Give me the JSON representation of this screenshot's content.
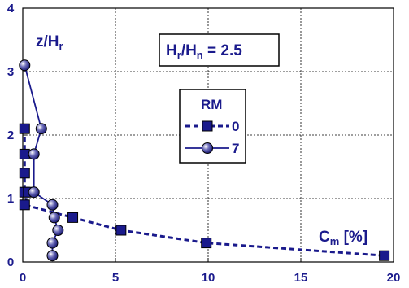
{
  "chart_data": {
    "type": "line",
    "xlabel": {
      "main": "C",
      "sub": "m",
      "rest": " [%]"
    },
    "ylabel": {
      "main": "z/H",
      "sub": "r"
    },
    "xlim": [
      0,
      20
    ],
    "ylim": [
      0,
      4
    ],
    "x_ticks": [
      "0",
      "5",
      "10",
      "15",
      "20"
    ],
    "y_ticks": [
      "0",
      "1",
      "2",
      "3",
      "4"
    ],
    "grid": true,
    "annotation": {
      "a": "H",
      "a_sub": "r",
      "slash": "/H",
      "b_sub": "n",
      "rest": " = 2.5"
    },
    "legend": {
      "title": "RM",
      "placement": "center-right"
    },
    "series": [
      {
        "name": "0",
        "marker": "square",
        "line": "dashed",
        "color": "#1a1a8c",
        "x": [
          0.1,
          0.1,
          0.1,
          0.1,
          0.3,
          0.1,
          2.7,
          5.3,
          9.9,
          19.5
        ],
        "y": [
          2.1,
          1.7,
          1.4,
          1.1,
          1.1,
          0.9,
          0.7,
          0.5,
          0.3,
          0.1
        ]
      },
      {
        "name": "7",
        "marker": "sphere",
        "line": "solid",
        "color": "#1a1a8c",
        "x": [
          0.1,
          1.0,
          0.6,
          0.6,
          1.6,
          1.7,
          1.9,
          1.6,
          1.6
        ],
        "y": [
          3.1,
          2.1,
          1.7,
          1.1,
          0.9,
          0.7,
          0.5,
          0.3,
          0.1
        ]
      }
    ]
  }
}
